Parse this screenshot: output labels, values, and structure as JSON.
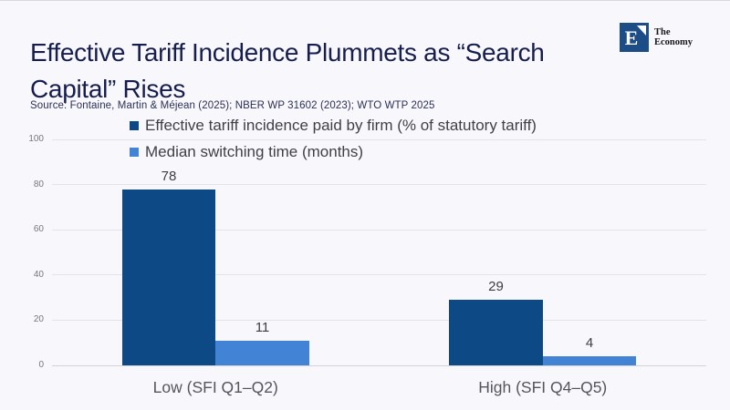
{
  "page": {
    "background": "#f8f8fc"
  },
  "header": {
    "title_line1": "Effective Tariff Incidence Plummets as “Search",
    "title_line2": "Capital” Rises",
    "source": "Source: Fontaine, Martin & Méjean (2025); NBER WP 31602 (2023); WTO WTP 2025",
    "logo": {
      "letter": "E",
      "name_line1": "The",
      "name_line2": "Economy",
      "color": "#1d4d87"
    }
  },
  "chart_data": {
    "type": "bar",
    "categories": [
      "Low (SFI Q1–Q2)",
      "High (SFI Q4–Q5)"
    ],
    "series": [
      {
        "name": "Effective tariff incidence paid by firm (% of statutory tariff)",
        "color": "#0d4a85",
        "values": [
          78,
          29
        ]
      },
      {
        "name": "Median switching time (months)",
        "color": "#4383d6",
        "values": [
          11,
          4
        ]
      }
    ],
    "title": "",
    "xlabel": "",
    "ylabel": "",
    "ylim": [
      0,
      100
    ],
    "yticks": [
      0,
      20,
      40,
      60,
      80,
      100
    ],
    "grid": true,
    "legend_position": "top-left-inside",
    "value_labels": true
  }
}
